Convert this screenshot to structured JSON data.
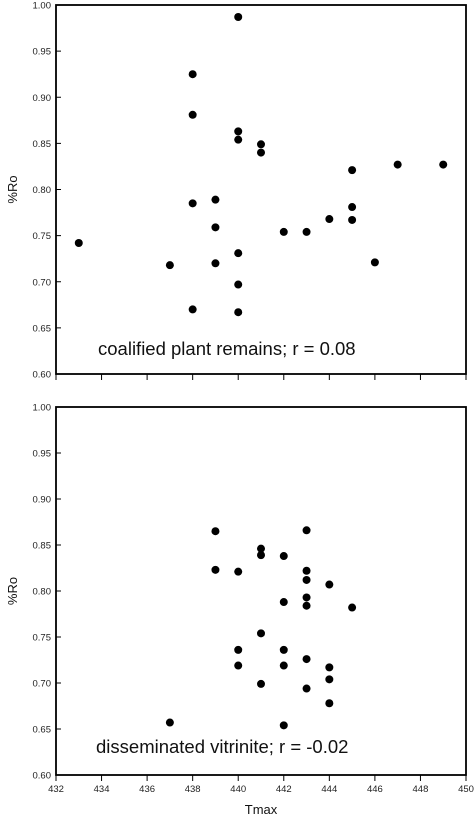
{
  "chart_data": [
    {
      "type": "scatter",
      "ylabel": "%Ro",
      "xlabel": "",
      "annotation": "coalified plant remains; r = 0.08",
      "xlim": [
        432,
        450
      ],
      "ylim": [
        0.6,
        1.0
      ],
      "x_ticks": [
        432,
        434,
        436,
        438,
        440,
        442,
        444,
        446,
        448,
        450
      ],
      "x_tick_labels": [],
      "y_ticks": [
        "0.60",
        "0.65",
        "0.70",
        "0.75",
        "0.80",
        "0.85",
        "0.90",
        "0.95",
        "1.00"
      ],
      "grid": false,
      "marker_color": "#000000",
      "points": [
        {
          "x": 433,
          "y": 0.742
        },
        {
          "x": 437,
          "y": 0.718
        },
        {
          "x": 438,
          "y": 0.925
        },
        {
          "x": 438,
          "y": 0.881
        },
        {
          "x": 438,
          "y": 0.785
        },
        {
          "x": 438,
          "y": 0.67
        },
        {
          "x": 439,
          "y": 0.789
        },
        {
          "x": 439,
          "y": 0.759
        },
        {
          "x": 439,
          "y": 0.72
        },
        {
          "x": 440,
          "y": 0.987
        },
        {
          "x": 440,
          "y": 0.863
        },
        {
          "x": 440,
          "y": 0.854
        },
        {
          "x": 440,
          "y": 0.731
        },
        {
          "x": 440,
          "y": 0.697
        },
        {
          "x": 440,
          "y": 0.667
        },
        {
          "x": 441,
          "y": 0.849
        },
        {
          "x": 441,
          "y": 0.84
        },
        {
          "x": 442,
          "y": 0.754
        },
        {
          "x": 443,
          "y": 0.754
        },
        {
          "x": 444,
          "y": 0.768
        },
        {
          "x": 445,
          "y": 0.821
        },
        {
          "x": 445,
          "y": 0.781
        },
        {
          "x": 445,
          "y": 0.767
        },
        {
          "x": 446,
          "y": 0.721
        },
        {
          "x": 447,
          "y": 0.827
        },
        {
          "x": 449,
          "y": 0.827
        }
      ]
    },
    {
      "type": "scatter",
      "ylabel": "%Ro",
      "xlabel": "Tmax",
      "annotation": "disseminated vitrinite; r = -0.02",
      "xlim": [
        432,
        450
      ],
      "ylim": [
        0.6,
        1.0
      ],
      "x_ticks": [
        432,
        434,
        436,
        438,
        440,
        442,
        444,
        446,
        448,
        450
      ],
      "x_tick_labels": [
        "432",
        "434",
        "436",
        "438",
        "440",
        "442",
        "444",
        "446",
        "448",
        "450"
      ],
      "y_ticks": [
        "0.60",
        "0.65",
        "0.70",
        "0.75",
        "0.80",
        "0.85",
        "0.90",
        "0.95",
        "1.00"
      ],
      "grid": false,
      "marker_color": "#000000",
      "points": [
        {
          "x": 437,
          "y": 0.657
        },
        {
          "x": 439,
          "y": 0.865
        },
        {
          "x": 439,
          "y": 0.823
        },
        {
          "x": 440,
          "y": 0.821
        },
        {
          "x": 440,
          "y": 0.736
        },
        {
          "x": 440,
          "y": 0.719
        },
        {
          "x": 441,
          "y": 0.846
        },
        {
          "x": 441,
          "y": 0.839
        },
        {
          "x": 441,
          "y": 0.754
        },
        {
          "x": 441,
          "y": 0.699
        },
        {
          "x": 442,
          "y": 0.838
        },
        {
          "x": 442,
          "y": 0.788
        },
        {
          "x": 442,
          "y": 0.736
        },
        {
          "x": 442,
          "y": 0.719
        },
        {
          "x": 442,
          "y": 0.654
        },
        {
          "x": 443,
          "y": 0.866
        },
        {
          "x": 443,
          "y": 0.822
        },
        {
          "x": 443,
          "y": 0.812
        },
        {
          "x": 443,
          "y": 0.793
        },
        {
          "x": 443,
          "y": 0.784
        },
        {
          "x": 443,
          "y": 0.726
        },
        {
          "x": 443,
          "y": 0.694
        },
        {
          "x": 444,
          "y": 0.807
        },
        {
          "x": 444,
          "y": 0.717
        },
        {
          "x": 444,
          "y": 0.704
        },
        {
          "x": 444,
          "y": 0.678
        },
        {
          "x": 445,
          "y": 0.782
        }
      ]
    }
  ]
}
